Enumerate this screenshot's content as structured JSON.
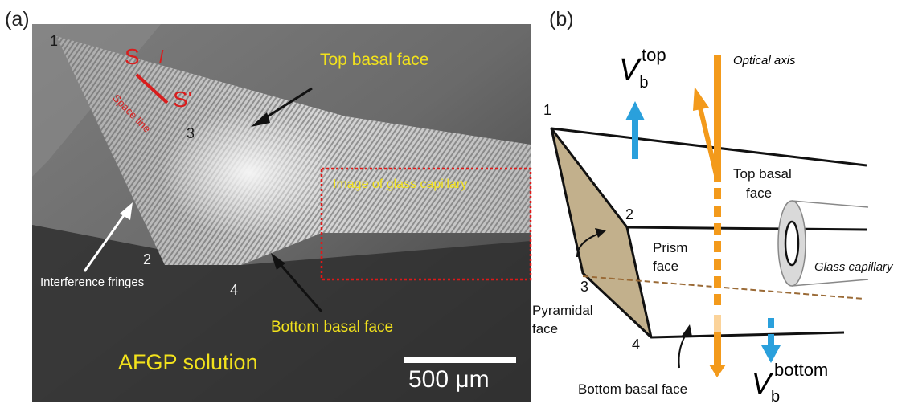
{
  "panel_a": {
    "letter": "(a)",
    "corner_labels": [
      "1",
      "2",
      "3",
      "4"
    ],
    "s_label": "S",
    "l_label": "l",
    "s_prime_label": "S'",
    "space_line_label": "Space line",
    "top_basal_face": "Top basal face",
    "image_of_glass_capillary": "Image of glass capillary",
    "interference_fringes": "Interference fringes",
    "bottom_basal_face": "Bottom basal face",
    "afgp_solution": "AFGP solution",
    "scale_bar": "500 μm",
    "colors": {
      "annotation_yellow": "#f2e21c",
      "space_line_red": "#d81e1e",
      "capillary_box": "#e01818"
    }
  },
  "panel_b": {
    "letter": "(b)",
    "corner_labels": [
      "1",
      "2",
      "3",
      "4"
    ],
    "v_top_symbol": "V",
    "v_top_sub": "b",
    "v_top_sup": "top",
    "optical_axis": "Optical axis",
    "top_basal_face_line1": "Top basal",
    "top_basal_face_line2": "face",
    "prism_face_line1": "Prism",
    "prism_face_line2": "face",
    "glass_capillary": "Glass capillary",
    "pyramidal_face_line1": "Pyramidal",
    "pyramidal_face_line2": "face",
    "bottom_basal_face": "Bottom basal face",
    "v_bottom_symbol": "V",
    "v_bottom_sub": "b",
    "v_bottom_sup": "bottom",
    "colors": {
      "axis_orange": "#f39a1b",
      "velocity_blue": "#2aa0dc",
      "pyramidal_fill": "#c2b08c",
      "dashed_brown": "#9a6a36"
    }
  }
}
